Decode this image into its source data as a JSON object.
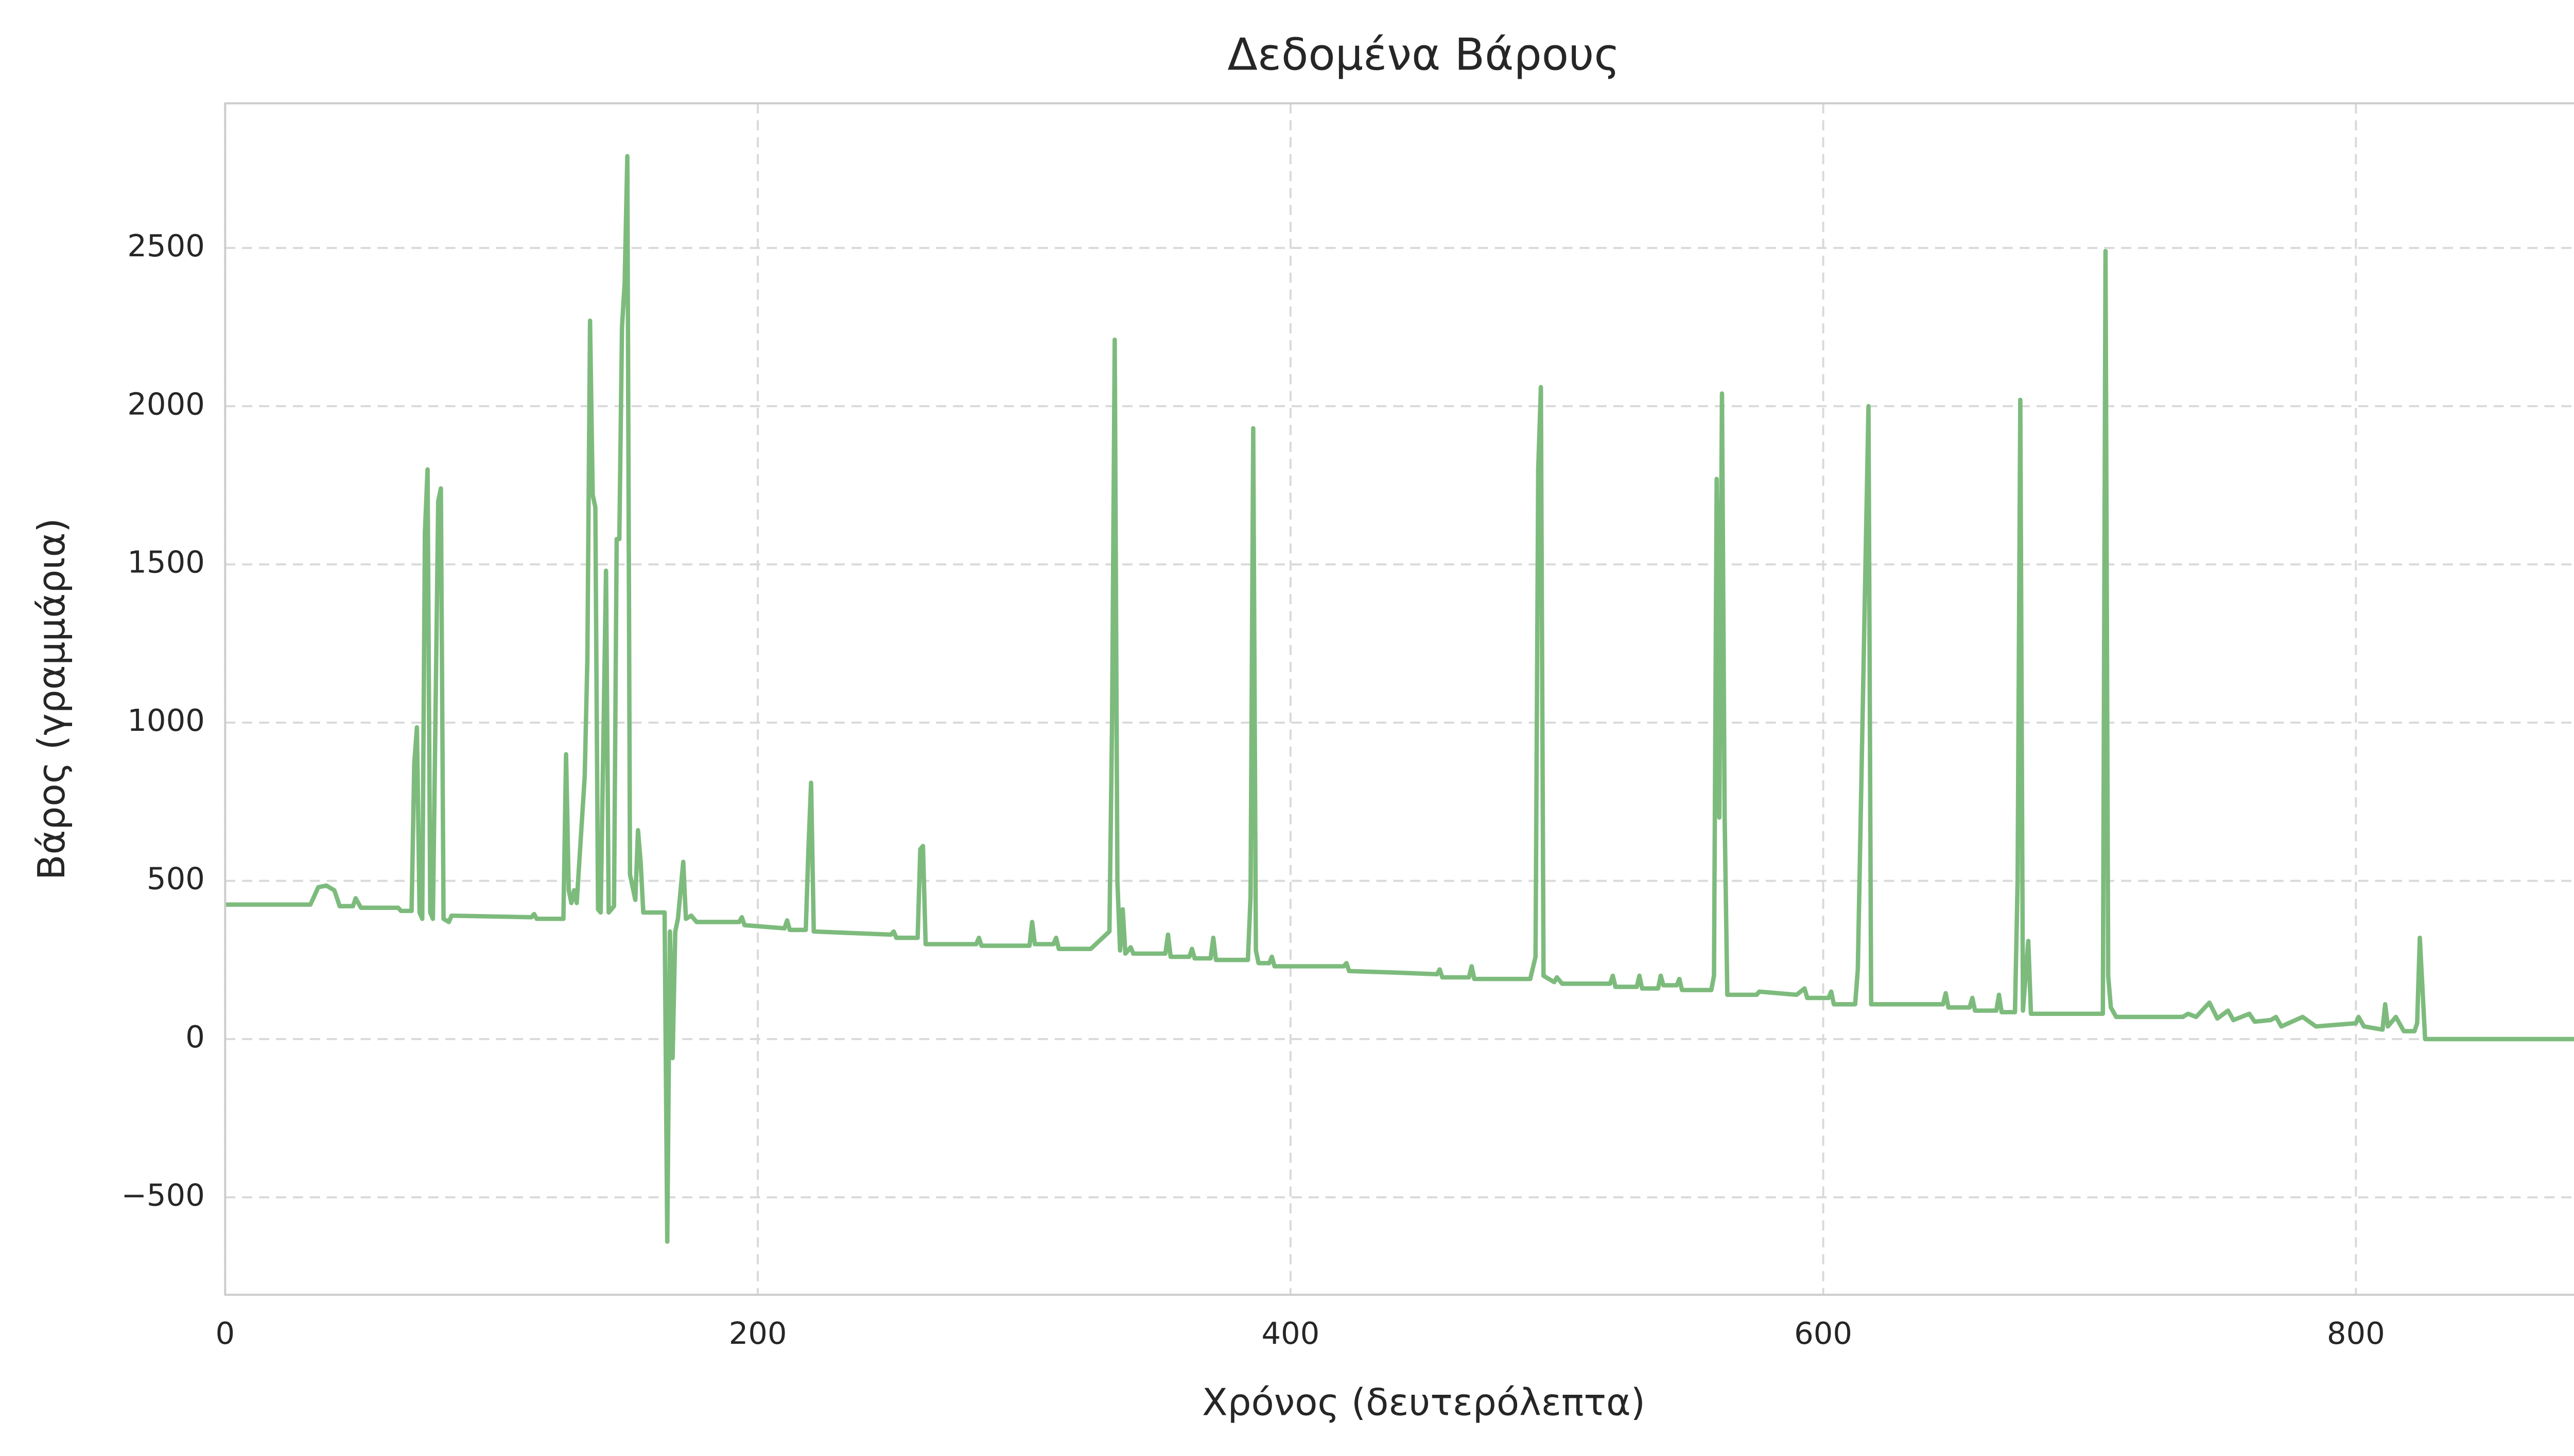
{
  "chart_data": {
    "type": "line",
    "title": "Δεδομένα Βάρους",
    "x_label": "Χρόνος (δευτερόλεπτα)",
    "y_label": "Βάρος (γραμμάρια)",
    "color": "#7dbb7d",
    "grid": true,
    "xlim": [
      0,
      900
    ],
    "ylim": [
      -808,
      2957
    ],
    "xticks": [
      0,
      200,
      400,
      600,
      800
    ],
    "yticks": [
      {
        "value": -500,
        "label": "−500"
      },
      0,
      500,
      1000,
      1500,
      2000,
      2500
    ],
    "x": [
      0,
      32,
      35,
      38,
      41,
      43,
      48,
      49,
      51,
      65,
      66,
      70,
      71,
      72,
      73,
      74,
      75,
      76,
      77,
      78,
      80,
      81,
      82,
      84,
      85,
      115,
      116,
      117,
      127,
      128,
      129,
      130,
      131,
      132,
      135,
      136,
      137,
      138,
      139,
      140,
      141,
      143,
      144,
      146,
      147,
      148,
      149,
      150,
      151,
      152,
      153,
      154,
      155,
      156,
      157,
      165,
      166,
      167,
      168,
      169,
      170,
      172,
      173,
      175,
      177,
      193,
      194,
      195,
      210,
      211,
      212,
      218,
      219,
      220,
      221,
      250,
      251,
      252,
      260,
      261,
      262,
      263,
      282,
      283,
      284,
      302,
      303,
      304,
      311,
      312,
      313,
      325,
      332,
      333,
      334,
      335,
      336,
      337,
      338,
      340,
      341,
      353,
      354,
      355,
      362,
      363,
      364,
      370,
      371,
      372,
      384,
      385,
      386,
      387,
      388,
      392,
      393,
      394,
      420,
      421,
      422,
      440,
      455,
      456,
      457,
      467,
      468,
      469,
      490,
      492,
      493,
      494,
      495,
      497,
      499,
      500,
      502,
      520,
      521,
      522,
      530,
      531,
      532,
      538,
      539,
      540,
      545,
      546,
      547,
      558,
      559,
      560,
      561,
      562,
      563,
      564,
      575,
      576,
      590,
      593,
      594,
      602,
      603,
      604,
      612,
      613,
      617,
      618,
      645,
      646,
      647,
      655,
      656,
      657,
      665,
      666,
      667,
      672,
      673,
      674,
      675,
      677,
      678,
      705,
      706,
      707,
      708,
      710,
      735,
      737,
      740,
      745,
      748,
      752,
      754,
      760,
      762,
      768,
      770,
      772,
      780,
      785,
      800,
      801,
      803,
      810,
      811,
      812,
      815,
      818,
      822,
      823,
      824,
      826,
      900
    ],
    "values": [
      425,
      425,
      480,
      485,
      470,
      420,
      420,
      445,
      415,
      415,
      405,
      405,
      870,
      985,
      400,
      380,
      1600,
      1800,
      400,
      380,
      1700,
      1740,
      380,
      370,
      390,
      385,
      395,
      380,
      380,
      900,
      470,
      430,
      470,
      430,
      830,
      1200,
      2270,
      1720,
      1680,
      410,
      400,
      1480,
      400,
      420,
      1580,
      1580,
      2250,
      2390,
      2790,
      520,
      480,
      440,
      660,
      560,
      400,
      400,
      -640,
      340,
      -60,
      340,
      380,
      560,
      380,
      390,
      370,
      370,
      385,
      360,
      350,
      375,
      345,
      345,
      600,
      810,
      340,
      330,
      340,
      320,
      320,
      600,
      610,
      300,
      300,
      320,
      295,
      295,
      370,
      300,
      300,
      320,
      285,
      285,
      340,
      1000,
      2210,
      500,
      280,
      410,
      270,
      290,
      270,
      270,
      330,
      260,
      260,
      285,
      255,
      255,
      320,
      250,
      250,
      450,
      1930,
      280,
      240,
      240,
      260,
      230,
      230,
      240,
      215,
      210,
      205,
      220,
      195,
      195,
      230,
      190,
      190,
      260,
      1800,
      2060,
      200,
      190,
      180,
      195,
      175,
      175,
      200,
      165,
      165,
      200,
      160,
      160,
      200,
      170,
      170,
      190,
      155,
      155,
      200,
      1770,
      700,
      2040,
      700,
      140,
      140,
      150,
      140,
      160,
      130,
      130,
      150,
      110,
      110,
      220,
      2000,
      110,
      110,
      145,
      100,
      100,
      130,
      90,
      90,
      140,
      85,
      85,
      500,
      2020,
      90,
      310,
      80,
      80,
      2490,
      200,
      100,
      70,
      70,
      80,
      70,
      115,
      65,
      90,
      60,
      80,
      55,
      60,
      70,
      40,
      70,
      40,
      50,
      70,
      40,
      30,
      110,
      40,
      70,
      25,
      25,
      50,
      320,
      0,
      0
    ]
  }
}
